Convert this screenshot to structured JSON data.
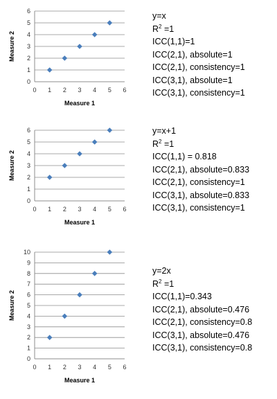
{
  "chart_data": [
    {
      "type": "scatter",
      "x": [
        1,
        2,
        3,
        4,
        5
      ],
      "y": [
        1,
        2,
        3,
        4,
        5
      ],
      "xlabel": "Measure 1",
      "ylabel": "Measure 2",
      "xlim": [
        0,
        6
      ],
      "ylim": [
        0,
        6
      ],
      "xticks": [
        "0",
        "1",
        "2",
        "3",
        "4",
        "5",
        "6"
      ],
      "yticks": [
        "0",
        "1",
        "2",
        "3",
        "4",
        "5",
        "6"
      ],
      "grid": "horizontal",
      "marker_color": "#4a7ebb",
      "annotations": {
        "equation": "y=x",
        "r2_prefix": "R",
        "r2_sup": "2",
        "r2_value": " =1",
        "lines": [
          "ICC(1,1)=1",
          "ICC(2,1), absolute=1",
          "ICC(2,1), consistency=1",
          "ICC(3,1), absolute=1",
          "ICC(3,1), consistency=1"
        ]
      }
    },
    {
      "type": "scatter",
      "x": [
        1,
        2,
        3,
        4,
        5
      ],
      "y": [
        2,
        3,
        4,
        5,
        6
      ],
      "xlabel": "Measure 1",
      "ylabel": "Measure 2",
      "xlim": [
        0,
        6
      ],
      "ylim": [
        0,
        6
      ],
      "xticks": [
        "0",
        "1",
        "2",
        "3",
        "4",
        "5",
        "6"
      ],
      "yticks": [
        "0",
        "1",
        "2",
        "3",
        "4",
        "5",
        "6"
      ],
      "grid": "horizontal",
      "marker_color": "#4a7ebb",
      "annotations": {
        "equation": "y=x+1",
        "r2_prefix": "R",
        "r2_sup": "2",
        "r2_value": " =1",
        "lines": [
          "ICC(1,1) = 0.818",
          "ICC(2,1), absolute=0.833",
          "ICC(2,1), consistency=1",
          "ICC(3,1), absolute=0.833",
          "ICC(3,1), consistency=1"
        ]
      }
    },
    {
      "type": "scatter",
      "x": [
        1,
        2,
        3,
        4,
        5
      ],
      "y": [
        2,
        4,
        6,
        8,
        10
      ],
      "xlabel": "Measure 1",
      "ylabel": "Measure 2",
      "xlim": [
        0,
        6
      ],
      "ylim": [
        0,
        10
      ],
      "xticks": [
        "0",
        "1",
        "2",
        "3",
        "4",
        "5",
        "6"
      ],
      "yticks": [
        "0",
        "1",
        "2",
        "3",
        "4",
        "5",
        "6",
        "7",
        "8",
        "9",
        "10"
      ],
      "grid": "horizontal",
      "marker_color": "#4a7ebb",
      "annotations": {
        "equation": "y=2x",
        "r2_prefix": "R",
        "r2_sup": "2",
        "r2_value": " =1",
        "lines": [
          "ICC(1,1)=0.343",
          "ICC(2,1), absolute=0.476",
          "ICC(2,1), consistency=0.8",
          "ICC(3,1), absolute=0.476",
          "ICC(3,1), consistency=0.8"
        ]
      }
    }
  ]
}
